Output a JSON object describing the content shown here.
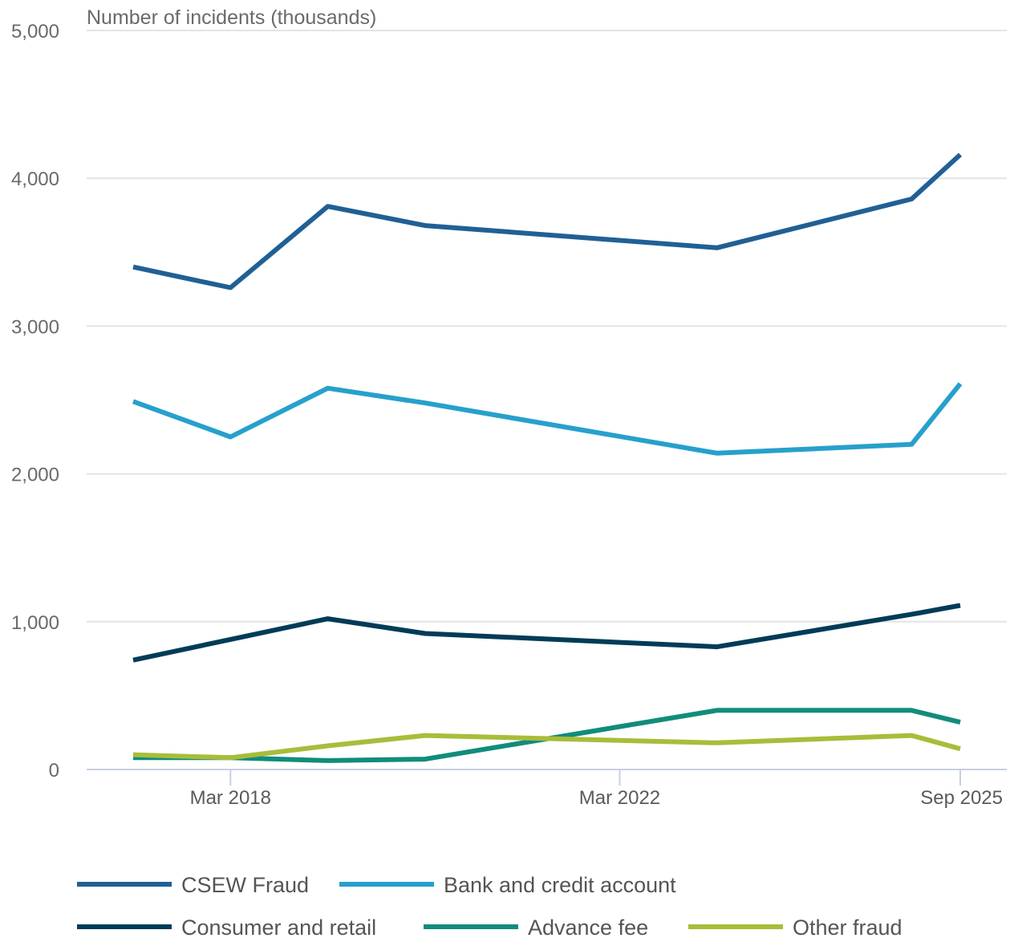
{
  "chart_data": {
    "type": "line",
    "ylabel": "Number of incidents (thousands)",
    "ylim": [
      0,
      5000
    ],
    "yticks": [
      0,
      1000,
      2000,
      3000,
      4000,
      5000
    ],
    "ytick_labels": [
      "0",
      "1,000",
      "2,000",
      "3,000",
      "4,000",
      "5,000"
    ],
    "x": [
      "Mar 2017",
      "Mar 2018",
      "Mar 2019",
      "Mar 2020",
      "Mar 2023",
      "Mar 2025",
      "Sep 2025"
    ],
    "xlim": [
      "Mar 2017",
      "Sep 2025"
    ],
    "xticks": [
      "Mar 2018",
      "Mar 2022",
      "Sep 2025"
    ],
    "xtick_labels": [
      "Mar 2018",
      "Mar 2022",
      "Sep 2025"
    ],
    "grid": true,
    "legend_position": "bottom",
    "series": [
      {
        "name": "CSEW Fraud",
        "color": "#206095",
        "values": [
          3400,
          3260,
          3810,
          3680,
          3530,
          3860,
          4160
        ]
      },
      {
        "name": "Bank and credit account",
        "color": "#27a0cc",
        "values": [
          2490,
          2250,
          2580,
          2480,
          2140,
          2200,
          2610
        ]
      },
      {
        "name": "Consumer and retail",
        "color": "#003c57",
        "values": [
          740,
          880,
          1020,
          920,
          830,
          1050,
          1110
        ]
      },
      {
        "name": "Advance fee",
        "color": "#118c7b",
        "values": [
          80,
          80,
          60,
          70,
          400,
          400,
          320
        ]
      },
      {
        "name": "Other fraud",
        "color": "#a8bd3a",
        "values": [
          100,
          80,
          160,
          230,
          180,
          230,
          140
        ]
      }
    ]
  }
}
